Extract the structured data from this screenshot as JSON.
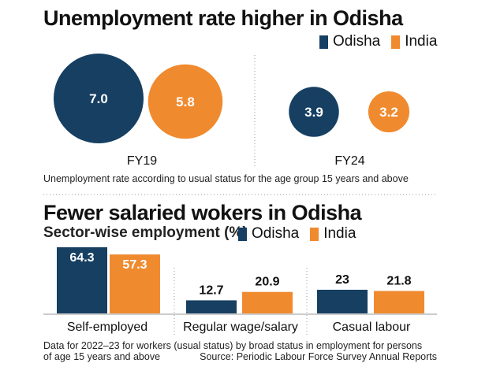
{
  "colors": {
    "odisha": "#163f62",
    "india": "#f08a2e",
    "divider": "#9a9a9a"
  },
  "title1": "Unemployment rate higher in Odisha",
  "title2": "Fewer salaried wokers in Odisha",
  "subtitle2": "Sector-wise employment (%)",
  "legend": {
    "odisha": "Odisha",
    "india": "India"
  },
  "note1": "Unemployment rate according to usual status for the age group 15 years and above",
  "note2_line1": "Data for 2022–23 for workers (usual status) by broad status in employment for persons",
  "note2_line2": "of age 15 years and above",
  "source": "Source: Periodic Labour Force Survey Annual Reports",
  "chart_data": [
    {
      "type": "bubble",
      "title": "Unemployment rate higher in Odisha",
      "categories": [
        "FY19",
        "FY24"
      ],
      "series": [
        {
          "name": "Odisha",
          "values": [
            7.0,
            3.9
          ],
          "labels": [
            "7.0",
            "3.9"
          ]
        },
        {
          "name": "India",
          "values": [
            5.8,
            3.2
          ],
          "labels": [
            "5.8",
            "3.2"
          ]
        }
      ]
    },
    {
      "type": "bar",
      "title": "Fewer salaried wokers in Odisha",
      "subtitle": "Sector-wise employment (%)",
      "categories": [
        "Self-employed",
        "Regular wage/salary",
        "Casual labour"
      ],
      "series": [
        {
          "name": "Odisha",
          "values": [
            64.3,
            12.7,
            23
          ],
          "labels": [
            "64.3",
            "12.7",
            "23"
          ]
        },
        {
          "name": "India",
          "values": [
            57.3,
            20.9,
            21.8
          ],
          "labels": [
            "57.3",
            "20.9",
            "21.8"
          ]
        }
      ],
      "ylim": [
        0,
        64.3
      ]
    }
  ]
}
